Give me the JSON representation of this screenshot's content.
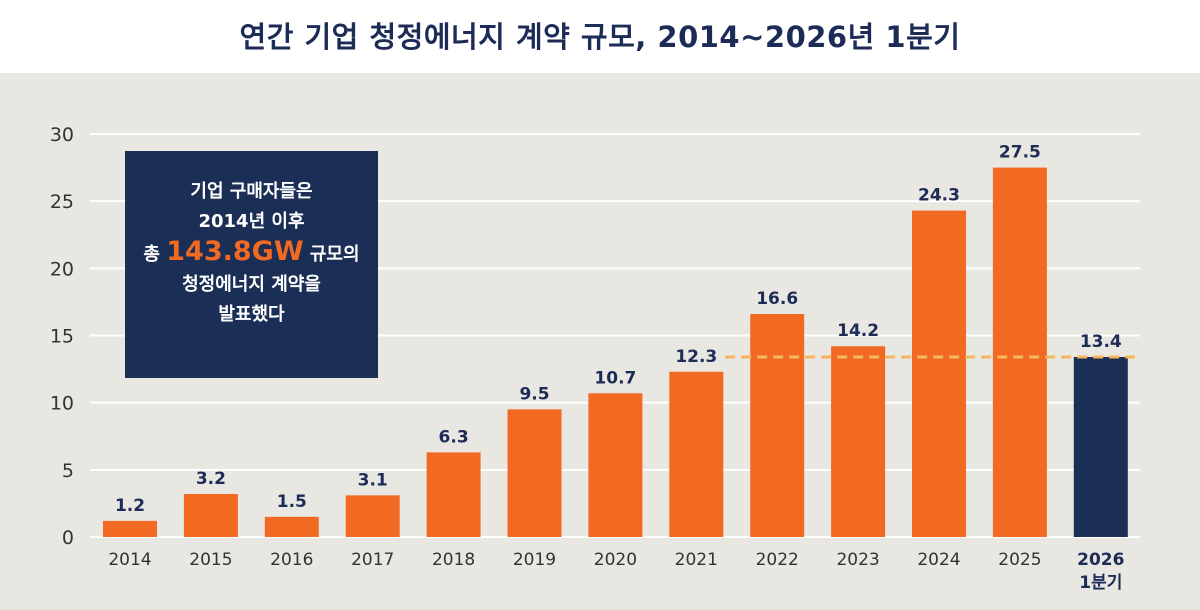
{
  "title": "연간 기업 청정에너지 계약 규모, 2014~2026년 1분기",
  "callout": {
    "line1": "기업 구매자들은",
    "line2": "2014년 이후",
    "line3_prefix": "총 ",
    "line3_highlight": "143.8GW",
    "line3_suffix": " 규모의",
    "line4": "청정에너지 계약을",
    "line5": "발표했다"
  },
  "colors": {
    "bar": "#f26a21",
    "highlight_bar": "#1b2e55",
    "reference_line": "#f5b55a",
    "panel_bg": "#e9e7e2",
    "title": "#1d2b57"
  },
  "chart_data": {
    "type": "bar",
    "title": "연간 기업 청정에너지 계약 규모, 2014~2026년 1분기",
    "categories": [
      "2014",
      "2015",
      "2016",
      "2017",
      "2018",
      "2019",
      "2020",
      "2021",
      "2022",
      "2023",
      "2024",
      "2025",
      "2026 1분기"
    ],
    "category_labels": [
      [
        "2014"
      ],
      [
        "2015"
      ],
      [
        "2016"
      ],
      [
        "2017"
      ],
      [
        "2018"
      ],
      [
        "2019"
      ],
      [
        "2020"
      ],
      [
        "2021"
      ],
      [
        "2022"
      ],
      [
        "2023"
      ],
      [
        "2024"
      ],
      [
        "2025"
      ],
      [
        "2026",
        "1분기"
      ]
    ],
    "values": [
      1.2,
      3.2,
      1.5,
      3.1,
      6.3,
      9.5,
      10.7,
      12.3,
      16.6,
      14.2,
      24.3,
      27.5,
      13.4
    ],
    "value_labels": [
      "1.2",
      "3.2",
      "1.5",
      "3.1",
      "6.3",
      "9.5",
      "10.7",
      "12.3",
      "16.6",
      "14.2",
      "24.3",
      "27.5",
      "13.4"
    ],
    "highlight_index": 12,
    "reference_value": 13.4,
    "reference_from_index": 8,
    "ylim": [
      0,
      30
    ],
    "yticks": [
      0,
      5,
      10,
      15,
      20,
      25,
      30
    ],
    "grid": true,
    "xlabel": "",
    "ylabel": ""
  }
}
